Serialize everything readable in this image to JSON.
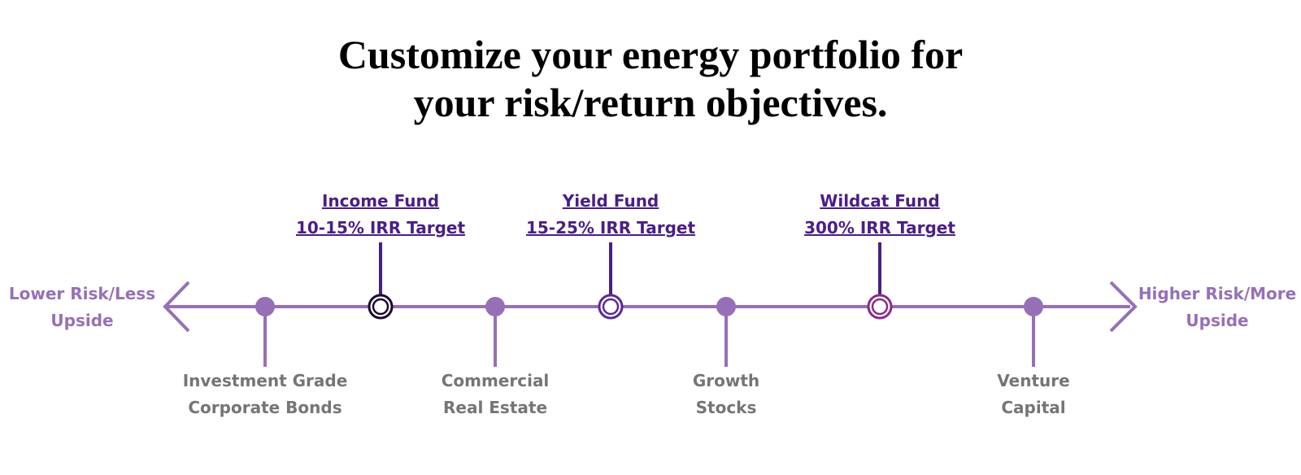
{
  "title": {
    "line1": "Customize your energy portfolio for",
    "line2": "your risk/return objectives."
  },
  "ends": {
    "left": {
      "line1": "Lower Risk/Less",
      "line2": "Upside"
    },
    "right": {
      "line1": "Higher Risk/More",
      "line2": "Upside"
    }
  },
  "funds": [
    {
      "name": "Income Fund",
      "target": "10-15% IRR Target"
    },
    {
      "name": "Yield Fund",
      "target": "15-25% IRR Target"
    },
    {
      "name": "Wildcat Fund",
      "target": "300% IRR Target"
    }
  ],
  "assets": [
    {
      "line1": "Investment Grade",
      "line2": "Corporate Bonds"
    },
    {
      "line1": "Commercial",
      "line2": "Real Estate"
    },
    {
      "line1": "Growth",
      "line2": "Stocks"
    },
    {
      "line1": "Venture",
      "line2": "Capital"
    }
  ],
  "colors": {
    "axis": "#9670b7",
    "fund_link": "#4a1e86",
    "asset_text": "#757575",
    "income_ring": "#1c0a2e",
    "yield_ring": "#5b2a96",
    "wildcat_ring": "#8c2a88"
  }
}
